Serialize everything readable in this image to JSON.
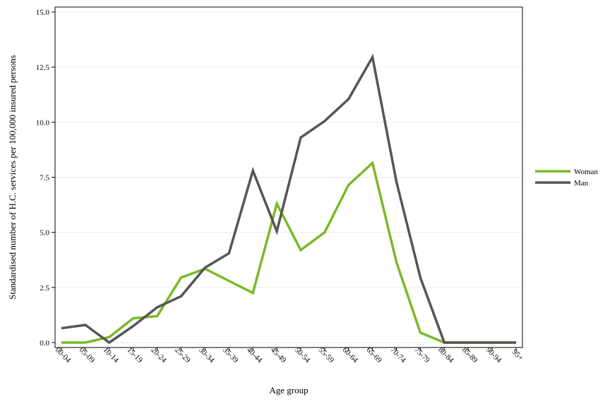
{
  "chart_data": {
    "type": "line",
    "xlabel": "Age group",
    "ylabel": "Standardised number of H.C. services per 100,000 insured persons",
    "categories": [
      "00-04",
      "05-09",
      "10-14",
      "15-19",
      "20-24",
      "25-29",
      "30-34",
      "35-39",
      "40-44",
      "45-49",
      "50-54",
      "55-59",
      "60-64",
      "65-69",
      "70-74",
      "75-79",
      "80-84",
      "85-89",
      "90-94",
      "95+"
    ],
    "ylim": [
      0,
      15
    ],
    "yticks": [
      0,
      2.5,
      5,
      7.5,
      10,
      12.5,
      15
    ],
    "ytick_labels": [
      "0.0",
      "2.5",
      "5.0",
      "7.5",
      "10.0",
      "12.5",
      "15.0"
    ],
    "grid": "horizontal",
    "legend_position": "right",
    "series": [
      {
        "name": "Woman",
        "color": "#7ab929",
        "values": [
          0.0,
          0.0,
          0.25,
          1.1,
          1.2,
          2.95,
          3.35,
          2.8,
          2.25,
          6.3,
          4.2,
          5.0,
          7.15,
          8.15,
          3.65,
          0.45,
          0.0,
          0.0,
          0.0,
          0.0
        ]
      },
      {
        "name": "Man",
        "color": "#555555",
        "values": [
          0.65,
          0.8,
          0.0,
          0.75,
          1.6,
          2.1,
          3.4,
          4.05,
          7.8,
          5.05,
          9.3,
          10.05,
          11.05,
          12.95,
          7.3,
          2.95,
          0.0,
          0.0,
          0.0,
          0.0
        ]
      }
    ]
  }
}
